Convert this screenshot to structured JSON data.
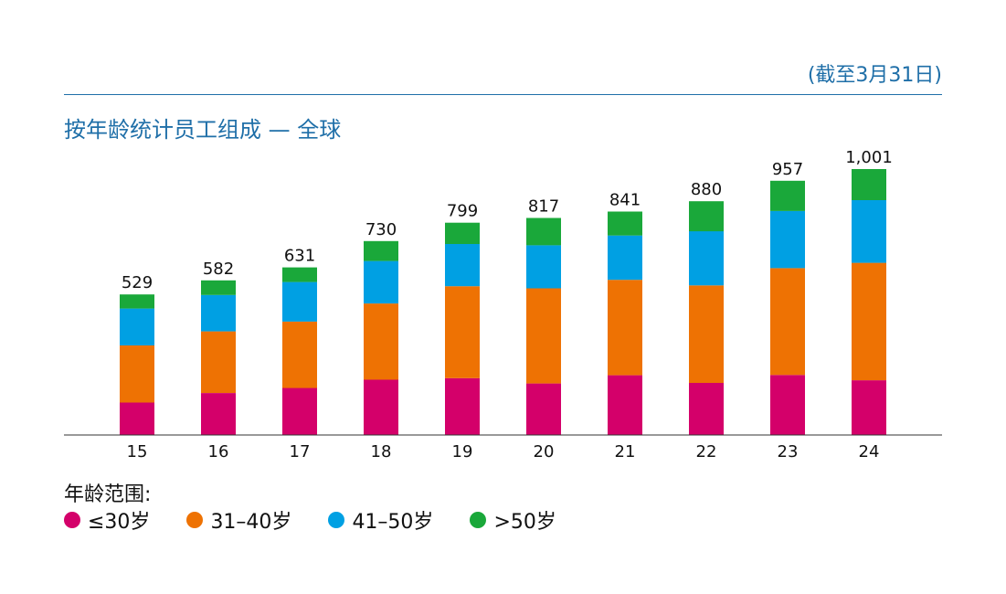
{
  "note": "(截至3月31日)",
  "chart_data": {
    "type": "bar",
    "stacked": true,
    "title": "按年龄统计员工组成 — 全球",
    "categories": [
      "15",
      "16",
      "17",
      "18",
      "19",
      "20",
      "21",
      "22",
      "23",
      "24"
    ],
    "totals": [
      "529",
      "582",
      "631",
      "730",
      "799",
      "817",
      "841",
      "880",
      "957",
      "1,001"
    ],
    "total_values": [
      529,
      582,
      631,
      730,
      799,
      817,
      841,
      880,
      957,
      1001
    ],
    "series": [
      {
        "name": "≤30岁",
        "color": "#d4006a",
        "values": [
          122,
          158,
          177,
          208,
          214,
          194,
          225,
          196,
          226,
          206
        ]
      },
      {
        "name": "31–40岁",
        "color": "#ee7203",
        "values": [
          215,
          232,
          250,
          287,
          346,
          358,
          359,
          367,
          402,
          442
        ]
      },
      {
        "name": "41–50岁",
        "color": "#00a0e3",
        "values": [
          139,
          137,
          149,
          160,
          159,
          162,
          167,
          204,
          215,
          236
        ]
      },
      {
        "name": ">50岁",
        "color": "#1aa83a",
        "values": [
          53,
          55,
          55,
          75,
          80,
          103,
          90,
          113,
          114,
          117
        ]
      }
    ],
    "ylim": [
      0,
      1001
    ],
    "grid": false,
    "legend_title": "年龄范围:",
    "legend_position": "bottom-left"
  }
}
